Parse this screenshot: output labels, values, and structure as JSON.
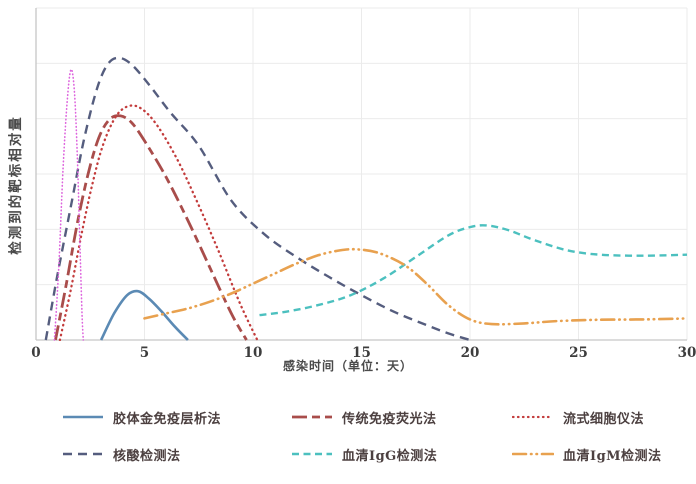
{
  "chart_data": {
    "type": "line",
    "title": "",
    "xlabel": "感染时间（单位：天）",
    "ylabel": "检测到的靶标相对量",
    "xlim": [
      0,
      30
    ],
    "ylim": [
      0,
      1
    ],
    "xticks": [
      0,
      5,
      10,
      15,
      20,
      25,
      30
    ],
    "grid": true,
    "gridline_color": "#ebebeb",
    "axis_color": "#c6c6c6",
    "tick_label_color": "#3d3d3d",
    "legend_position": "bottom",
    "y_unit": "relative amount (no numeric ticks shown)",
    "series": [
      {
        "key": "colloidal_gold",
        "name": "胶体金免疫层析法",
        "color": "#5b8ab4",
        "line_style": "solid",
        "dash": "",
        "width": 2.6,
        "points": [
          [
            3.0,
            0
          ],
          [
            3.6,
            0.08
          ],
          [
            4.2,
            0.135
          ],
          [
            4.7,
            0.147
          ],
          [
            5.2,
            0.125
          ],
          [
            5.8,
            0.085
          ],
          [
            6.4,
            0.04
          ],
          [
            7.0,
            0
          ]
        ]
      },
      {
        "key": "immunofluorescence",
        "name": "传统免疫荧光法",
        "color": "#a94d4b",
        "line_style": "long-dash",
        "dash": "15 5 8 5",
        "width": 2.8,
        "points": [
          [
            0.9,
            0
          ],
          [
            1.4,
            0.17
          ],
          [
            1.9,
            0.35
          ],
          [
            2.4,
            0.5
          ],
          [
            2.9,
            0.61
          ],
          [
            3.4,
            0.665
          ],
          [
            3.9,
            0.675
          ],
          [
            4.4,
            0.655
          ],
          [
            5.0,
            0.6
          ],
          [
            6.0,
            0.49
          ],
          [
            7.0,
            0.36
          ],
          [
            8.0,
            0.22
          ],
          [
            9.0,
            0.08
          ],
          [
            9.7,
            0
          ]
        ]
      },
      {
        "key": "flow_cytometry",
        "name": "流式细胞仪法",
        "color": "#c33c3c",
        "line_style": "dotted",
        "dash": "0.5 4.5",
        "width": 2.3,
        "points": [
          [
            1.1,
            0
          ],
          [
            1.6,
            0.15
          ],
          [
            2.1,
            0.32
          ],
          [
            2.6,
            0.47
          ],
          [
            3.1,
            0.59
          ],
          [
            3.7,
            0.675
          ],
          [
            4.3,
            0.705
          ],
          [
            4.9,
            0.695
          ],
          [
            5.6,
            0.645
          ],
          [
            6.5,
            0.545
          ],
          [
            7.4,
            0.42
          ],
          [
            8.4,
            0.27
          ],
          [
            9.4,
            0.11
          ],
          [
            10.2,
            0
          ]
        ]
      },
      {
        "key": "nucleic_acid",
        "name": "核酸检测法",
        "color": "#555d7e",
        "line_style": "dashed",
        "dash": "9 6",
        "width": 2.4,
        "points": [
          [
            0.45,
            0
          ],
          [
            1.0,
            0.2
          ],
          [
            1.6,
            0.4
          ],
          [
            2.2,
            0.6
          ],
          [
            2.8,
            0.755
          ],
          [
            3.3,
            0.83
          ],
          [
            3.8,
            0.85
          ],
          [
            4.4,
            0.83
          ],
          [
            5.2,
            0.77
          ],
          [
            6.2,
            0.685
          ],
          [
            7.5,
            0.585
          ],
          [
            9.0,
            0.42
          ],
          [
            10.5,
            0.32
          ],
          [
            12.0,
            0.25
          ],
          [
            13.5,
            0.19
          ],
          [
            15.0,
            0.135
          ],
          [
            16.5,
            0.085
          ],
          [
            18.0,
            0.045
          ],
          [
            19.0,
            0.02
          ],
          [
            20.0,
            0
          ]
        ]
      },
      {
        "key": "serum_igg",
        "name": "血清IgG检测法",
        "color": "#4cc0bf",
        "line_style": "short-dash",
        "dash": "7 4.5",
        "width": 2.4,
        "points": [
          [
            10.3,
            0.075
          ],
          [
            11.5,
            0.085
          ],
          [
            13.0,
            0.105
          ],
          [
            14.5,
            0.135
          ],
          [
            16.0,
            0.185
          ],
          [
            17.5,
            0.25
          ],
          [
            19.0,
            0.315
          ],
          [
            20.0,
            0.34
          ],
          [
            20.8,
            0.345
          ],
          [
            21.8,
            0.33
          ],
          [
            23.0,
            0.3
          ],
          [
            24.5,
            0.27
          ],
          [
            26.0,
            0.257
          ],
          [
            28.0,
            0.254
          ],
          [
            30.0,
            0.257
          ]
        ]
      },
      {
        "key": "serum_igm",
        "name": "血清IgM检测法",
        "color": "#e8a14f",
        "line_style": "dash-dot-dot",
        "dash": "13 5 0.5 5 0.5 5",
        "width": 2.6,
        "points": [
          [
            5.0,
            0.065
          ],
          [
            6.0,
            0.08
          ],
          [
            7.0,
            0.095
          ],
          [
            8.0,
            0.115
          ],
          [
            9.0,
            0.14
          ],
          [
            10.0,
            0.17
          ],
          [
            11.0,
            0.2
          ],
          [
            12.0,
            0.23
          ],
          [
            13.0,
            0.255
          ],
          [
            14.0,
            0.27
          ],
          [
            14.8,
            0.273
          ],
          [
            15.8,
            0.262
          ],
          [
            17.0,
            0.225
          ],
          [
            18.0,
            0.17
          ],
          [
            19.0,
            0.105
          ],
          [
            20.0,
            0.062
          ],
          [
            21.0,
            0.048
          ],
          [
            22.5,
            0.05
          ],
          [
            24.0,
            0.057
          ],
          [
            26.0,
            0.061
          ],
          [
            28.0,
            0.062
          ],
          [
            30.0,
            0.065
          ]
        ]
      },
      {
        "key": "pink_spike",
        "name": "",
        "color": "#dd64dd",
        "line_style": "dotted",
        "dash": "0.5 3",
        "width": 1.6,
        "points": [
          [
            0.85,
            0
          ],
          [
            1.05,
            0.22
          ],
          [
            1.25,
            0.52
          ],
          [
            1.45,
            0.73
          ],
          [
            1.62,
            0.815
          ],
          [
            1.78,
            0.74
          ],
          [
            1.92,
            0.52
          ],
          [
            2.03,
            0.27
          ],
          [
            2.12,
            0.08
          ],
          [
            2.18,
            0
          ]
        ]
      }
    ]
  },
  "legend": {
    "items": [
      "胶体金免疫层析法",
      "传统免疫荧光法",
      "流式细胞仪法",
      "核酸检测法",
      "血清IgG检测法",
      "血清IgM检测法"
    ]
  }
}
